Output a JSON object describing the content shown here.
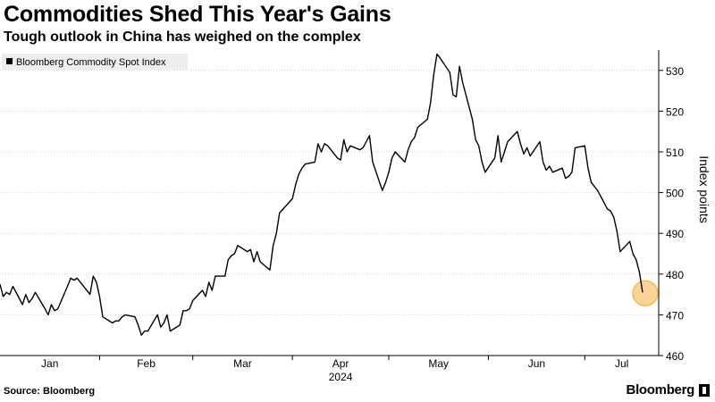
{
  "header": {
    "title": "Commodities Shed This Year's Gains",
    "subtitle": "Tough outlook in China has weighed on the complex"
  },
  "footer": {
    "source": "Source: Bloomberg",
    "brand": "Bloomberg"
  },
  "chart_data": {
    "type": "line",
    "legend": {
      "placement": "top-left",
      "entries": [
        "Bloomberg Commodity Spot Index"
      ]
    },
    "ylabel": "Index points",
    "ylim": [
      460,
      535
    ],
    "yticks": [
      460,
      470,
      480,
      490,
      500,
      510,
      520,
      530
    ],
    "y_axis_side": "right",
    "xlabel": "2024",
    "xticks": [
      "Jan",
      "Feb",
      "Mar",
      "Apr",
      "May",
      "Jun",
      "Jul"
    ],
    "grid": "horizontal-dotted",
    "highlight": {
      "color": "#F5B041",
      "point": "last"
    },
    "colors": {
      "line": "#000000",
      "highlight": "#F5B041",
      "legend_bg": "#EEEEEE"
    },
    "series": [
      {
        "name": "Bloomberg Commodity Spot Index",
        "points": [
          [
            "2024-01-01",
            477.5
          ],
          [
            "2024-01-02",
            474.5
          ],
          [
            "2024-01-03",
            475.5
          ],
          [
            "2024-01-04",
            475.0
          ],
          [
            "2024-01-05",
            477.0
          ],
          [
            "2024-01-08",
            472.5
          ],
          [
            "2024-01-09",
            475.0
          ],
          [
            "2024-01-10",
            473.0
          ],
          [
            "2024-01-11",
            474.0
          ],
          [
            "2024-01-12",
            475.5
          ],
          [
            "2024-01-15",
            471.5
          ],
          [
            "2024-01-16",
            470.0
          ],
          [
            "2024-01-17",
            472.5
          ],
          [
            "2024-01-18",
            471.0
          ],
          [
            "2024-01-19",
            471.5
          ],
          [
            "2024-01-22",
            477.0
          ],
          [
            "2024-01-23",
            479.0
          ],
          [
            "2024-01-24",
            478.5
          ],
          [
            "2024-01-25",
            479.0
          ],
          [
            "2024-01-26",
            478.0
          ],
          [
            "2024-01-29",
            475.0
          ],
          [
            "2024-01-30",
            479.5
          ],
          [
            "2024-01-31",
            478.0
          ],
          [
            "2024-02-01",
            474.5
          ],
          [
            "2024-02-02",
            469.5
          ],
          [
            "2024-02-05",
            468.0
          ],
          [
            "2024-02-06",
            468.5
          ],
          [
            "2024-02-07",
            468.5
          ],
          [
            "2024-02-08",
            469.5
          ],
          [
            "2024-02-09",
            470.0
          ],
          [
            "2024-02-12",
            469.5
          ],
          [
            "2024-02-13",
            467.5
          ],
          [
            "2024-02-14",
            465.0
          ],
          [
            "2024-02-15",
            466.0
          ],
          [
            "2024-02-16",
            466.0
          ],
          [
            "2024-02-19",
            470.0
          ],
          [
            "2024-02-20",
            467.0
          ],
          [
            "2024-02-21",
            468.0
          ],
          [
            "2024-02-22",
            470.0
          ],
          [
            "2024-02-23",
            466.0
          ],
          [
            "2024-02-26",
            467.5
          ],
          [
            "2024-02-27",
            471.0
          ],
          [
            "2024-02-28",
            471.0
          ],
          [
            "2024-02-29",
            471.5
          ],
          [
            "2024-03-01",
            473.5
          ],
          [
            "2024-03-04",
            476.0
          ],
          [
            "2024-03-05",
            474.5
          ],
          [
            "2024-03-06",
            478.0
          ],
          [
            "2024-03-07",
            476.0
          ],
          [
            "2024-03-08",
            479.5
          ],
          [
            "2024-03-11",
            479.5
          ],
          [
            "2024-03-12",
            483.5
          ],
          [
            "2024-03-13",
            484.5
          ],
          [
            "2024-03-14",
            485.0
          ],
          [
            "2024-03-15",
            487.0
          ],
          [
            "2024-03-18",
            485.5
          ],
          [
            "2024-03-19",
            486.0
          ],
          [
            "2024-03-20",
            483.0
          ],
          [
            "2024-03-21",
            485.5
          ],
          [
            "2024-03-22",
            483.0
          ],
          [
            "2024-03-25",
            481.0
          ],
          [
            "2024-03-26",
            487.0
          ],
          [
            "2024-03-27",
            490.0
          ],
          [
            "2024-03-28",
            495.0
          ],
          [
            "2024-04-01",
            498.5
          ],
          [
            "2024-04-02",
            502.0
          ],
          [
            "2024-04-03",
            504.5
          ],
          [
            "2024-04-04",
            506.0
          ],
          [
            "2024-04-05",
            507.0
          ],
          [
            "2024-04-08",
            507.5
          ],
          [
            "2024-04-09",
            512.0
          ],
          [
            "2024-04-10",
            510.0
          ],
          [
            "2024-04-11",
            512.0
          ],
          [
            "2024-04-12",
            511.5
          ],
          [
            "2024-04-15",
            508.5
          ],
          [
            "2024-04-16",
            508.0
          ],
          [
            "2024-04-17",
            513.0
          ],
          [
            "2024-04-18",
            510.0
          ],
          [
            "2024-04-19",
            511.5
          ],
          [
            "2024-04-22",
            510.5
          ],
          [
            "2024-04-23",
            511.0
          ],
          [
            "2024-04-24",
            512.5
          ],
          [
            "2024-04-25",
            514.0
          ],
          [
            "2024-04-26",
            507.5
          ],
          [
            "2024-04-29",
            500.5
          ],
          [
            "2024-04-30",
            502.5
          ],
          [
            "2024-05-01",
            505.0
          ],
          [
            "2024-05-02",
            508.5
          ],
          [
            "2024-05-03",
            510.0
          ],
          [
            "2024-05-06",
            507.5
          ],
          [
            "2024-05-07",
            510.5
          ],
          [
            "2024-05-08",
            512.5
          ],
          [
            "2024-05-09",
            513.5
          ],
          [
            "2024-05-10",
            516.0
          ],
          [
            "2024-05-13",
            518.0
          ],
          [
            "2024-05-14",
            522.0
          ],
          [
            "2024-05-15",
            529.0
          ],
          [
            "2024-05-16",
            534.0
          ],
          [
            "2024-05-17",
            533.0
          ],
          [
            "2024-05-20",
            529.5
          ],
          [
            "2024-05-21",
            524.0
          ],
          [
            "2024-05-22",
            523.5
          ],
          [
            "2024-05-23",
            531.0
          ],
          [
            "2024-05-24",
            527.0
          ],
          [
            "2024-05-27",
            518.0
          ],
          [
            "2024-05-28",
            513.0
          ],
          [
            "2024-05-29",
            511.5
          ],
          [
            "2024-05-30",
            507.5
          ],
          [
            "2024-05-31",
            505.0
          ],
          [
            "2024-06-03",
            508.5
          ],
          [
            "2024-06-04",
            514.0
          ],
          [
            "2024-06-05",
            507.5
          ],
          [
            "2024-06-06",
            510.0
          ],
          [
            "2024-06-07",
            512.5
          ],
          [
            "2024-06-10",
            515.0
          ],
          [
            "2024-06-11",
            512.0
          ],
          [
            "2024-06-12",
            509.5
          ],
          [
            "2024-06-13",
            511.0
          ],
          [
            "2024-06-14",
            509.0
          ],
          [
            "2024-06-17",
            512.5
          ],
          [
            "2024-06-18",
            507.5
          ],
          [
            "2024-06-19",
            505.5
          ],
          [
            "2024-06-20",
            506.5
          ],
          [
            "2024-06-21",
            505.0
          ],
          [
            "2024-06-24",
            506.0
          ],
          [
            "2024-06-25",
            503.5
          ],
          [
            "2024-06-26",
            504.0
          ],
          [
            "2024-06-27",
            505.0
          ],
          [
            "2024-06-28",
            511.0
          ],
          [
            "2024-07-01",
            511.5
          ],
          [
            "2024-07-02",
            506.0
          ],
          [
            "2024-07-03",
            502.5
          ],
          [
            "2024-07-04",
            501.5
          ],
          [
            "2024-07-05",
            500.5
          ],
          [
            "2024-07-08",
            496.0
          ],
          [
            "2024-07-09",
            495.5
          ],
          [
            "2024-07-10",
            494.0
          ],
          [
            "2024-07-11",
            490.5
          ],
          [
            "2024-07-12",
            485.5
          ],
          [
            "2024-07-15",
            488.0
          ],
          [
            "2024-07-16",
            485.0
          ],
          [
            "2024-07-17",
            483.5
          ],
          [
            "2024-07-18",
            480.5
          ],
          [
            "2024-07-19",
            475.5
          ]
        ]
      }
    ]
  }
}
